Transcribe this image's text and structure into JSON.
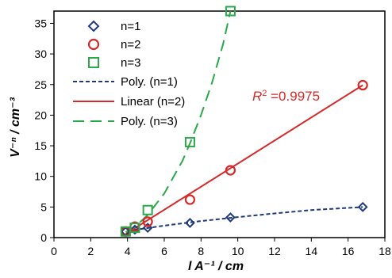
{
  "chart_data": {
    "type": "scatter",
    "xlabel": "l A⁻¹ / cm",
    "ylabel": "V⁻ⁿ / cm⁻³",
    "xlim": [
      0,
      18
    ],
    "ylim": [
      0,
      37
    ],
    "xticks": [
      0,
      2,
      4,
      6,
      8,
      10,
      12,
      14,
      16,
      18
    ],
    "yticks": [
      0,
      5,
      10,
      15,
      20,
      25,
      30,
      35
    ],
    "grid": false,
    "legend": "top-left",
    "series": [
      {
        "name": "n=1",
        "marker": "diamond",
        "color": "#1f3a7a",
        "x": [
          3.9,
          4.4,
          5.1,
          7.4,
          9.6,
          16.8
        ],
        "y": [
          1.0,
          1.3,
          1.6,
          2.4,
          3.3,
          5.0
        ]
      },
      {
        "name": "n=2",
        "marker": "circle",
        "color": "#d42a2a",
        "x": [
          3.9,
          4.4,
          5.1,
          7.4,
          9.6,
          16.8
        ],
        "y": [
          1.0,
          1.8,
          2.6,
          6.2,
          11.0,
          24.9
        ]
      },
      {
        "name": "n=3",
        "marker": "square",
        "color": "#2aa84a",
        "x": [
          3.9,
          4.4,
          5.1,
          7.4,
          9.6
        ],
        "y": [
          1.0,
          1.6,
          4.5,
          15.6,
          37.0
        ]
      }
    ],
    "fits": [
      {
        "name": "Poly. (n=1)",
        "style": "dotted-dash",
        "color": "#1f3a7a",
        "x": [
          4.0,
          6.0,
          8.0,
          10.0,
          12.0,
          14.0,
          16.8
        ],
        "y": [
          1.1,
          1.95,
          2.7,
          3.35,
          3.95,
          4.5,
          5.0
        ]
      },
      {
        "name": "Linear (n=2)",
        "style": "solid",
        "color": "#d42a2a",
        "x": [
          3.9,
          16.8
        ],
        "y": [
          0.6,
          24.9
        ]
      },
      {
        "name": "Poly. (n=3)",
        "style": "long-dash",
        "color": "#2aa84a",
        "x": [
          3.9,
          4.4,
          5.1,
          6.0,
          7.0,
          7.4,
          8.0,
          8.6,
          9.2,
          9.6
        ],
        "y": [
          0.9,
          1.7,
          3.7,
          7.2,
          12.6,
          15.4,
          20.0,
          25.3,
          31.6,
          37.0
        ]
      }
    ],
    "annotation": {
      "text_base": "R",
      "text_sup": "2",
      "text_rest": " =0.9975",
      "color": "#d42a2a"
    }
  }
}
